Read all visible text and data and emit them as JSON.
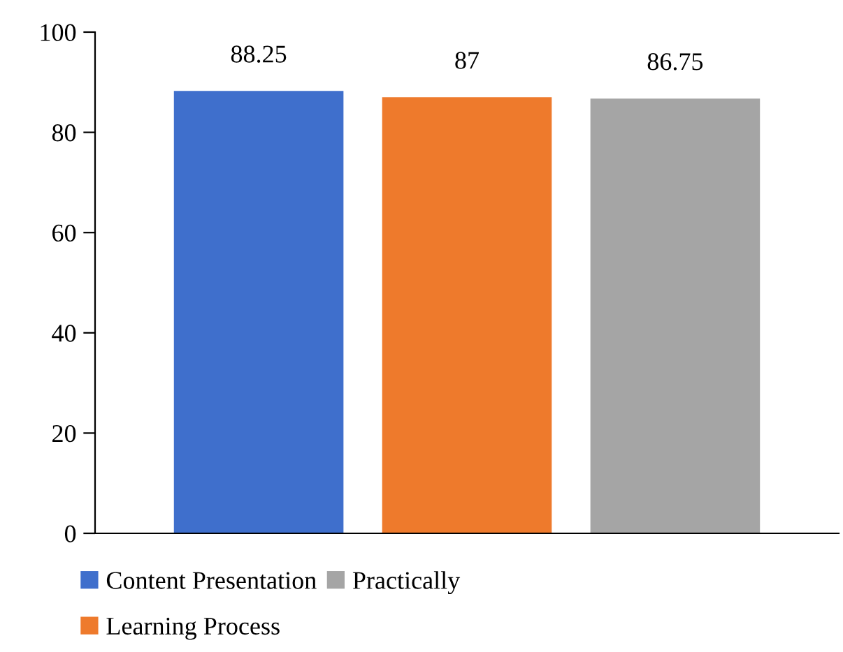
{
  "chart_data": {
    "type": "bar",
    "categories": [
      null
    ],
    "series": [
      {
        "name": "Content Presentation",
        "color": "#3f6fcc",
        "values": [
          88.25
        ]
      },
      {
        "name": "Learning Process",
        "color": "#ee7a2c",
        "values": [
          87
        ]
      },
      {
        "name": "Practically",
        "color": "#a5a5a5",
        "values": [
          86.75
        ]
      }
    ],
    "ylim": [
      0,
      100
    ],
    "yticks": [
      0,
      20,
      40,
      60,
      80,
      100
    ],
    "grid": false,
    "legend": "bottom",
    "data_labels": true
  }
}
